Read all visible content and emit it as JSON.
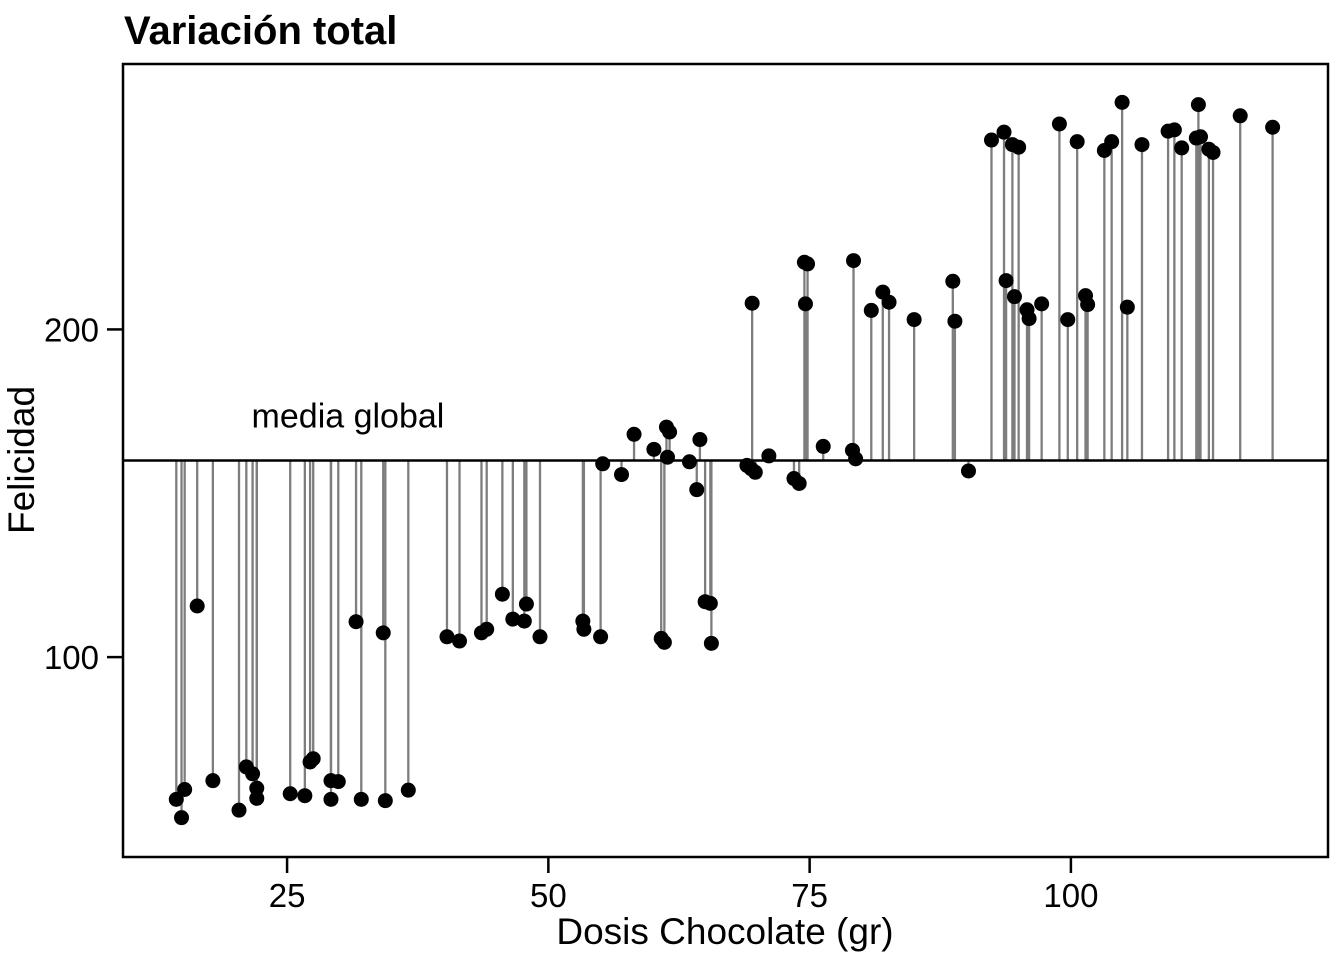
{
  "title": "Variación total",
  "colors": {
    "background": "#ffffff",
    "panel_border": "#000000",
    "segment": "#7d7d7d",
    "point": "#000000",
    "mean_line": "#000000",
    "text": "#000000"
  },
  "chart_data": {
    "type": "scatter",
    "title": "Variación total",
    "xlabel": "Dosis Chocolate (gr)",
    "ylabel": "Felicidad",
    "xlim": [
      9.3,
      124.6
    ],
    "ylim": [
      39,
      281
    ],
    "x_ticks": [
      25,
      50,
      75,
      100
    ],
    "y_ticks": [
      100,
      200
    ],
    "grid": false,
    "legend": "none",
    "mean_line": 160,
    "annotation": {
      "text": "media global",
      "x": 21.6,
      "y": 170
    },
    "segment_note": "each point is joined to the global mean by a vertical gray segment",
    "points": [
      [
        14.4,
        56.6
      ],
      [
        14.9,
        51.0
      ],
      [
        15.2,
        59.6
      ],
      [
        16.4,
        115.6
      ],
      [
        17.9,
        62.3
      ],
      [
        20.4,
        53.3
      ],
      [
        21.1,
        66.5
      ],
      [
        21.7,
        64.4
      ],
      [
        22.1,
        60.0
      ],
      [
        22.1,
        56.9
      ],
      [
        25.3,
        58.3
      ],
      [
        26.7,
        57.7
      ],
      [
        27.2,
        68.0
      ],
      [
        27.5,
        69.0
      ],
      [
        29.2,
        56.6
      ],
      [
        29.2,
        62.3
      ],
      [
        29.9,
        62.0
      ],
      [
        31.6,
        110.8
      ],
      [
        32.1,
        56.6
      ],
      [
        34.2,
        107.4
      ],
      [
        34.4,
        56.2
      ],
      [
        36.6,
        59.4
      ],
      [
        40.3,
        106.2
      ],
      [
        41.5,
        104.9
      ],
      [
        43.6,
        107.4
      ],
      [
        44.1,
        108.5
      ],
      [
        45.6,
        119.2
      ],
      [
        46.6,
        111.6
      ],
      [
        47.7,
        111.0
      ],
      [
        47.9,
        116.2
      ],
      [
        49.2,
        106.2
      ],
      [
        53.3,
        111.0
      ],
      [
        53.4,
        108.5
      ],
      [
        55.0,
        106.2
      ],
      [
        55.2,
        159.0
      ],
      [
        57.0,
        155.7
      ],
      [
        58.2,
        168.0
      ],
      [
        60.1,
        163.4
      ],
      [
        60.8,
        105.7
      ],
      [
        61.1,
        104.5
      ],
      [
        61.3,
        170.2
      ],
      [
        61.6,
        168.7
      ],
      [
        61.4,
        161.0
      ],
      [
        63.5,
        159.6
      ],
      [
        64.2,
        151.1
      ],
      [
        64.5,
        166.4
      ],
      [
        65.0,
        116.9
      ],
      [
        65.5,
        116.4
      ],
      [
        65.6,
        104.2
      ],
      [
        69.0,
        158.5
      ],
      [
        69.4,
        157.5
      ],
      [
        69.8,
        156.4
      ],
      [
        69.5,
        208.0
      ],
      [
        71.1,
        161.4
      ],
      [
        73.5,
        154.5
      ],
      [
        74.0,
        153.0
      ],
      [
        74.5,
        220.5
      ],
      [
        74.8,
        220.0
      ],
      [
        74.6,
        207.8
      ],
      [
        76.3,
        164.3
      ],
      [
        79.1,
        163.1
      ],
      [
        79.4,
        160.5
      ],
      [
        79.2,
        221.0
      ],
      [
        80.9,
        205.8
      ],
      [
        82.0,
        211.4
      ],
      [
        82.6,
        208.3
      ],
      [
        85.0,
        203.0
      ],
      [
        88.7,
        214.7
      ],
      [
        88.9,
        202.5
      ],
      [
        90.2,
        156.8
      ],
      [
        92.4,
        257.8
      ],
      [
        93.6,
        260.2
      ],
      [
        94.4,
        256.4
      ],
      [
        95.0,
        255.6
      ],
      [
        93.8,
        214.9
      ],
      [
        94.6,
        210.0
      ],
      [
        95.8,
        206.0
      ],
      [
        96.0,
        203.3
      ],
      [
        97.2,
        207.8
      ],
      [
        98.9,
        262.7
      ],
      [
        99.7,
        203.0
      ],
      [
        100.6,
        257.3
      ],
      [
        101.4,
        210.3
      ],
      [
        101.6,
        207.6
      ],
      [
        103.2,
        254.6
      ],
      [
        103.9,
        257.3
      ],
      [
        104.9,
        269.3
      ],
      [
        105.4,
        206.8
      ],
      [
        106.8,
        256.4
      ],
      [
        109.3,
        260.5
      ],
      [
        109.9,
        260.9
      ],
      [
        110.6,
        255.4
      ],
      [
        112.0,
        258.4
      ],
      [
        112.4,
        258.8
      ],
      [
        112.2,
        268.6
      ],
      [
        113.2,
        255.0
      ],
      [
        113.6,
        254.0
      ],
      [
        116.2,
        265.2
      ],
      [
        119.3,
        261.7
      ]
    ]
  }
}
